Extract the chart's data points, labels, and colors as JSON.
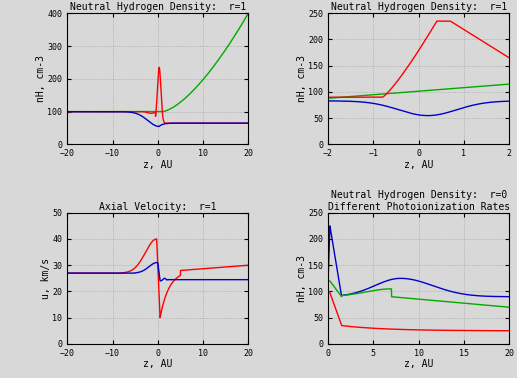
{
  "panel1": {
    "title": "Neutral Hydrogen Density:  r=1",
    "xlabel": "z, AU",
    "ylabel": "nH, cm-3",
    "xlim": [
      -20,
      20
    ],
    "ylim": [
      0,
      400
    ],
    "yticks": [
      0,
      100,
      200,
      300,
      400
    ],
    "xticks": [
      -20,
      -10,
      0,
      10,
      20
    ]
  },
  "panel2": {
    "title": "Neutral Hydrogen Density:  r=1",
    "xlabel": "z, AU",
    "ylabel": "nH, cm-3",
    "xlim": [
      -2,
      2
    ],
    "ylim": [
      0,
      250
    ],
    "yticks": [
      0,
      50,
      100,
      150,
      200,
      250
    ],
    "xticks": [
      -2,
      -1,
      0,
      1,
      2
    ]
  },
  "panel3": {
    "title": "Axial Velocity:  r=1",
    "xlabel": "z, AU",
    "ylabel": "u, km/s",
    "xlim": [
      -20,
      20
    ],
    "ylim": [
      0,
      50
    ],
    "yticks": [
      0,
      10,
      20,
      30,
      40,
      50
    ],
    "xticks": [
      -20,
      -10,
      0,
      10,
      20
    ]
  },
  "panel4": {
    "title": "Neutral Hydrogen Density:  r=0\nDifferent Photoionization Rates",
    "xlabel": "z, AU",
    "ylabel": "nH, cm-3",
    "xlim": [
      0,
      20
    ],
    "ylim": [
      0,
      250
    ],
    "yticks": [
      0,
      50,
      100,
      150,
      200,
      250
    ],
    "xticks": [
      0,
      5,
      10,
      15,
      20
    ]
  },
  "colors": {
    "red": "#ff0000",
    "green": "#00aa00",
    "blue": "#0000cc"
  },
  "bg_color": "#d8d8d8",
  "font_family": "monospace"
}
